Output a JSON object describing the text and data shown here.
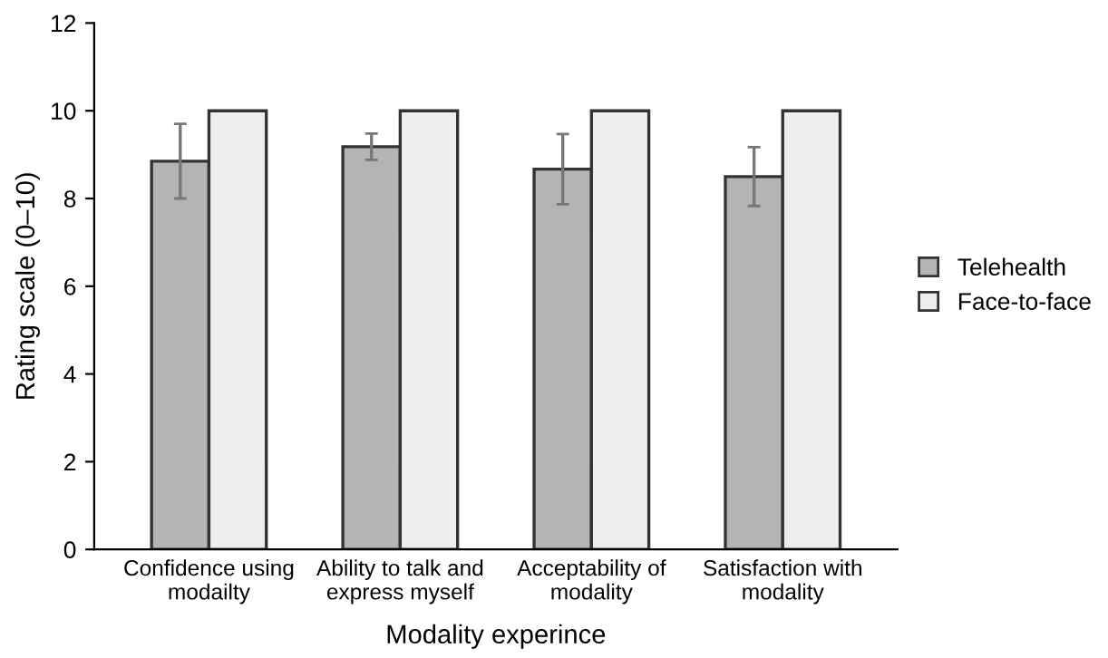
{
  "chart_data": {
    "type": "bar",
    "xlabel": "Modality experince",
    "ylabel": "Rating scale (0–10)",
    "categories": [
      "Confidence using\nmodailty",
      "Ability to talk and\nexpress myself",
      "Acceptability of\nmodality",
      "Satisfaction with\nmodality"
    ],
    "series": [
      {
        "name": "Telehealth",
        "color": "#b4b4b4",
        "values": [
          8.85,
          9.18,
          8.67,
          8.5
        ],
        "errors": [
          0.85,
          0.3,
          0.8,
          0.67
        ]
      },
      {
        "name": "Face-to-face",
        "color": "#eeeeee",
        "values": [
          10,
          10,
          10,
          10
        ]
      }
    ],
    "ylim": [
      0,
      12
    ],
    "yticks": [
      0,
      2,
      4,
      6,
      8,
      10,
      12
    ],
    "grid": false,
    "legend": "right"
  }
}
